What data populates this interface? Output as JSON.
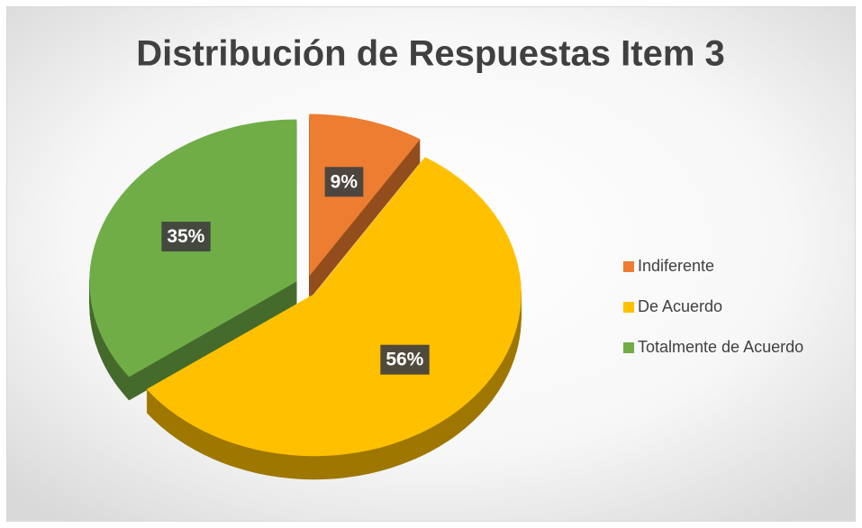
{
  "chart_data": {
    "type": "pie",
    "title": "Distribución de Respuestas Item 3",
    "categories": [
      "Indiferente",
      "De Acuerdo",
      "Totalmente de Acuerdo"
    ],
    "values": [
      9,
      56,
      35
    ],
    "value_labels": [
      "9%",
      "56%",
      "35%"
    ],
    "colors": [
      "#ED7D31",
      "#FFC000",
      "#70AD47"
    ],
    "legend": "right"
  }
}
